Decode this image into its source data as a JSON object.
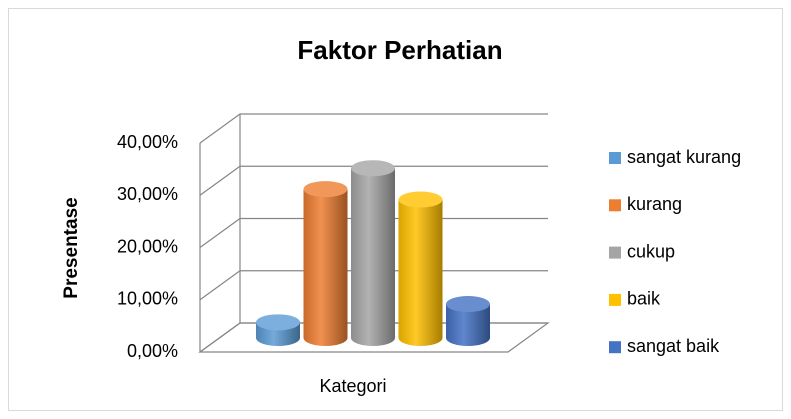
{
  "chart_data": {
    "type": "bar",
    "title": "Faktor Perhatian",
    "xlabel": "Kategori",
    "ylabel": "Presentase",
    "categories": [
      "Kategori"
    ],
    "series": [
      {
        "name": "sangat kurang",
        "color": "#5b9bd5",
        "values": [
          3
        ]
      },
      {
        "name": "kurang",
        "color": "#ed7d31",
        "values": [
          28.5
        ]
      },
      {
        "name": "cukup",
        "color": "#a5a5a5",
        "values": [
          32.5
        ]
      },
      {
        "name": "baik",
        "color": "#ffc000",
        "values": [
          26.5
        ]
      },
      {
        "name": "sangat baik",
        "color": "#4472c4",
        "values": [
          6.5
        ]
      }
    ],
    "ylim": [
      0,
      40
    ],
    "yticks": [
      {
        "value": 0,
        "label": "0,00%"
      },
      {
        "value": 10,
        "label": "10,00%"
      },
      {
        "value": 20,
        "label": "20,00%"
      },
      {
        "value": 30,
        "label": "30,00%"
      },
      {
        "value": 40,
        "label": "40,00%"
      }
    ],
    "grid": true,
    "legend": "right"
  }
}
